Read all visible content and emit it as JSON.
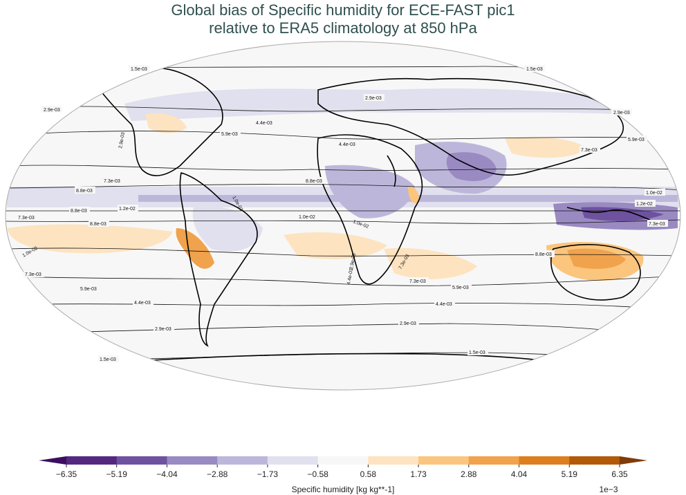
{
  "title_line1": "Global bias of Specific humidity for ECE-FAST pic1",
  "title_line2": "relative to ERA5 climatology at 850 hPa",
  "colorbar": {
    "label": "Specific humidity [kg kg**-1]",
    "multiplier": "1e−3",
    "ticks": [
      "−6.35",
      "−5.19",
      "−4.04",
      "−2.88",
      "−1.73",
      "−0.58",
      "0.58",
      "1.73",
      "2.88",
      "4.04",
      "5.19",
      "6.35"
    ],
    "colors": {
      "under": "#3b0f5e",
      "bins": [
        "#54287e",
        "#6e52a0",
        "#9a8ac2",
        "#bcb7da",
        "#e0e0ee",
        "#f7f7f7",
        "#fde3c0",
        "#fbc57e",
        "#f0a24c",
        "#dd7f1f",
        "#b35a08"
      ],
      "over": "#7f3b08"
    }
  },
  "contour_labels": [
    {
      "text": "1.5e-03"
    },
    {
      "text": "1.5e-03"
    },
    {
      "text": "2.9e-03"
    },
    {
      "text": "2.9e-03"
    },
    {
      "text": "2.9e-03"
    },
    {
      "text": "4.4e-03"
    },
    {
      "text": "4.4e-03"
    },
    {
      "text": "5.9e-03"
    },
    {
      "text": "5.9e-03"
    },
    {
      "text": "7.3e-03"
    },
    {
      "text": "7.3e-03"
    },
    {
      "text": "8.8e-03"
    },
    {
      "text": "8.8e-03"
    },
    {
      "text": "1.0e-02"
    },
    {
      "text": "1.0e-02"
    },
    {
      "text": "1.2e-02"
    },
    {
      "text": "8.8e-03"
    },
    {
      "text": "7.3e-03"
    },
    {
      "text": "8.8e-03"
    },
    {
      "text": "7.3e-03"
    },
    {
      "text": "1.0e-02"
    },
    {
      "text": "7.3e-03"
    },
    {
      "text": "5.9e-03"
    },
    {
      "text": "4.4e-03"
    },
    {
      "text": "2.9e-03"
    },
    {
      "text": "1.5e-03"
    },
    {
      "text": "8.8e-03"
    },
    {
      "text": "7.3e-03"
    },
    {
      "text": "5.9e-03"
    },
    {
      "text": "4.4e-03"
    },
    {
      "text": "2.9e-03"
    },
    {
      "text": "1.5e-03"
    },
    {
      "text": "2.9e-03"
    },
    {
      "text": "4.4e-03"
    },
    {
      "text": "2.9e-03"
    },
    {
      "text": "1.0e-02"
    },
    {
      "text": "1.0e-02"
    },
    {
      "text": "1.2e-02"
    },
    {
      "text": "7.3e-03"
    }
  ]
}
